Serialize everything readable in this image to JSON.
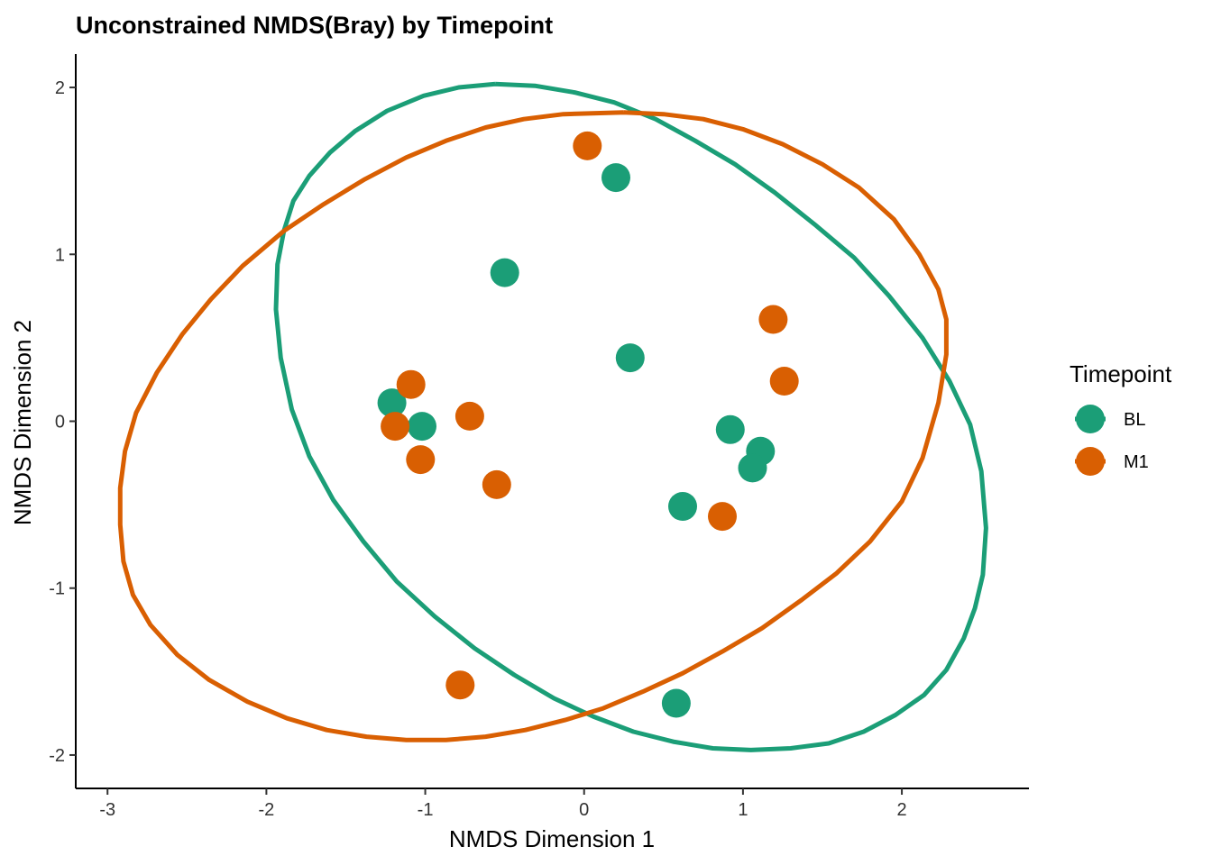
{
  "chart_data": {
    "type": "scatter",
    "title": "Unconstrained NMDS(Bray) by Timepoint",
    "xlabel": "NMDS Dimension 1",
    "ylabel": "NMDS Dimension 2",
    "xlim": [
      -3.2,
      2.8
    ],
    "ylim": [
      -2.2,
      2.2
    ],
    "x_ticks": [
      -3,
      -2,
      -1,
      0,
      1,
      2
    ],
    "y_ticks": [
      -2,
      -1,
      0,
      1,
      2
    ],
    "x_tick_labels": [
      "-3",
      "-2",
      "-1",
      "0",
      "1",
      "2"
    ],
    "y_tick_labels": [
      "-2",
      "-1",
      "0",
      "1",
      "2"
    ],
    "grid": false,
    "legend": {
      "title": "Timepoint",
      "placement": "right"
    },
    "series": [
      {
        "name": "BL",
        "color": "#1B9E77",
        "points": [
          {
            "x": 0.2,
            "y": 1.46
          },
          {
            "x": -0.5,
            "y": 0.89
          },
          {
            "x": 0.29,
            "y": 0.38
          },
          {
            "x": -1.21,
            "y": 0.11
          },
          {
            "x": -1.02,
            "y": -0.03
          },
          {
            "x": 0.92,
            "y": -0.05
          },
          {
            "x": 1.11,
            "y": -0.18
          },
          {
            "x": 1.06,
            "y": -0.28
          },
          {
            "x": 0.62,
            "y": -0.51
          },
          {
            "x": 0.58,
            "y": -1.69
          }
        ],
        "ellipse": [
          [
            -0.56,
            2.02
          ],
          [
            -0.31,
            2.01
          ],
          [
            -0.06,
            1.97
          ],
          [
            0.19,
            1.91
          ],
          [
            0.45,
            1.81
          ],
          [
            0.7,
            1.68
          ],
          [
            0.95,
            1.54
          ],
          [
            1.2,
            1.37
          ],
          [
            1.45,
            1.18
          ],
          [
            1.7,
            0.98
          ],
          [
            1.92,
            0.75
          ],
          [
            2.13,
            0.5
          ],
          [
            2.3,
            0.24
          ],
          [
            2.43,
            -0.02
          ],
          [
            2.5,
            -0.3
          ],
          [
            2.53,
            -0.64
          ],
          [
            2.51,
            -0.92
          ],
          [
            2.46,
            -1.12
          ],
          [
            2.39,
            -1.3
          ],
          [
            2.28,
            -1.49
          ],
          [
            2.14,
            -1.64
          ],
          [
            1.96,
            -1.76
          ],
          [
            1.76,
            -1.86
          ],
          [
            1.54,
            -1.93
          ],
          [
            1.3,
            -1.96
          ],
          [
            1.05,
            -1.97
          ],
          [
            0.81,
            -1.96
          ],
          [
            0.56,
            -1.92
          ],
          [
            0.31,
            -1.86
          ],
          [
            0.06,
            -1.77
          ],
          [
            -0.19,
            -1.66
          ],
          [
            -0.44,
            -1.52
          ],
          [
            -0.69,
            -1.36
          ],
          [
            -0.94,
            -1.17
          ],
          [
            -1.18,
            -0.96
          ],
          [
            -1.39,
            -0.72
          ],
          [
            -1.58,
            -0.47
          ],
          [
            -1.73,
            -0.21
          ],
          [
            -1.84,
            0.07
          ],
          [
            -1.91,
            0.38
          ],
          [
            -1.94,
            0.67
          ],
          [
            -1.93,
            0.94
          ],
          [
            -1.89,
            1.14
          ],
          [
            -1.83,
            1.32
          ],
          [
            -1.73,
            1.47
          ],
          [
            -1.6,
            1.61
          ],
          [
            -1.44,
            1.74
          ],
          [
            -1.24,
            1.86
          ],
          [
            -1.01,
            1.95
          ],
          [
            -0.79,
            2.0
          ],
          [
            -0.56,
            2.02
          ]
        ]
      },
      {
        "name": "M1",
        "color": "#D95F02",
        "points": [
          {
            "x": 0.02,
            "y": 1.65
          },
          {
            "x": 1.19,
            "y": 0.61
          },
          {
            "x": 1.26,
            "y": 0.24
          },
          {
            "x": -1.09,
            "y": 0.22
          },
          {
            "x": -0.72,
            "y": 0.03
          },
          {
            "x": -1.19,
            "y": -0.03
          },
          {
            "x": -1.03,
            "y": -0.23
          },
          {
            "x": -0.55,
            "y": -0.38
          },
          {
            "x": 0.87,
            "y": -0.57
          },
          {
            "x": -0.78,
            "y": -1.58
          }
        ],
        "ellipse": [
          [
            0.25,
            1.85
          ],
          [
            0.5,
            1.84
          ],
          [
            0.75,
            1.81
          ],
          [
            1.0,
            1.75
          ],
          [
            1.25,
            1.66
          ],
          [
            1.5,
            1.54
          ],
          [
            1.73,
            1.4
          ],
          [
            1.95,
            1.21
          ],
          [
            2.11,
            1.0
          ],
          [
            2.23,
            0.79
          ],
          [
            2.28,
            0.61
          ],
          [
            2.28,
            0.4
          ],
          [
            2.23,
            0.11
          ],
          [
            2.13,
            -0.22
          ],
          [
            2.0,
            -0.48
          ],
          [
            1.8,
            -0.72
          ],
          [
            1.59,
            -0.91
          ],
          [
            1.37,
            -1.07
          ],
          [
            1.12,
            -1.24
          ],
          [
            0.87,
            -1.38
          ],
          [
            0.62,
            -1.51
          ],
          [
            0.37,
            -1.62
          ],
          [
            0.12,
            -1.72
          ],
          [
            -0.12,
            -1.79
          ],
          [
            -0.37,
            -1.85
          ],
          [
            -0.62,
            -1.89
          ],
          [
            -0.87,
            -1.91
          ],
          [
            -1.12,
            -1.91
          ],
          [
            -1.37,
            -1.89
          ],
          [
            -1.62,
            -1.85
          ],
          [
            -1.87,
            -1.78
          ],
          [
            -2.12,
            -1.68
          ],
          [
            -2.36,
            -1.55
          ],
          [
            -2.56,
            -1.4
          ],
          [
            -2.73,
            -1.22
          ],
          [
            -2.84,
            -1.04
          ],
          [
            -2.9,
            -0.84
          ],
          [
            -2.92,
            -0.62
          ],
          [
            -2.92,
            -0.4
          ],
          [
            -2.89,
            -0.18
          ],
          [
            -2.82,
            0.05
          ],
          [
            -2.69,
            0.29
          ],
          [
            -2.53,
            0.52
          ],
          [
            -2.35,
            0.73
          ],
          [
            -2.15,
            0.93
          ],
          [
            -1.89,
            1.14
          ],
          [
            -1.64,
            1.3
          ],
          [
            -1.38,
            1.45
          ],
          [
            -1.12,
            1.58
          ],
          [
            -0.87,
            1.68
          ],
          [
            -0.62,
            1.76
          ],
          [
            -0.38,
            1.81
          ],
          [
            -0.13,
            1.84
          ],
          [
            0.25,
            1.85
          ]
        ]
      }
    ]
  }
}
